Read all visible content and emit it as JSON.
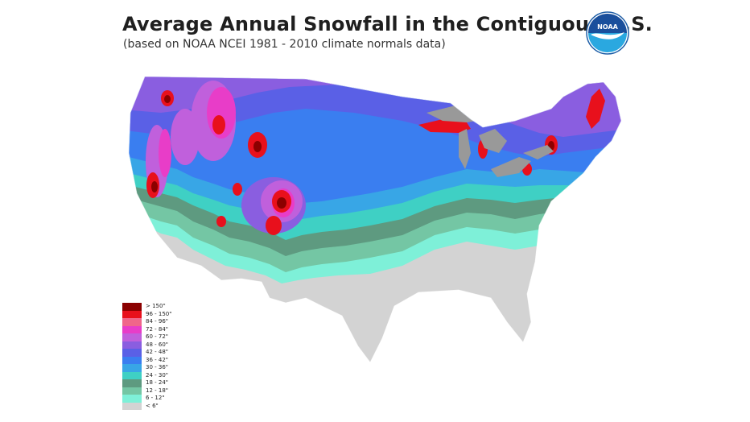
{
  "title": "Average Annual Snowfall in the Contiguous U.S.",
  "subtitle": "(based on NOAA NCEI 1981 - 2010 climate normals data)",
  "logo_text": "NOAA",
  "colors": {
    "gt150": "#8b0000",
    "96_150": "#e8101c",
    "84_96": "#f0668a",
    "72_84": "#e83dc8",
    "60_72": "#c060dc",
    "48_60": "#8a5ee0",
    "42_48": "#5a60e6",
    "36_42": "#3a7ef0",
    "30_36": "#38a6e6",
    "24_30": "#3fd0c4",
    "18_24": "#5e9a80",
    "12_18": "#74c6a4",
    "6_12": "#7ef0d8",
    "lt6": "#d3d3d3",
    "lakes": "#999999"
  },
  "legend": [
    {
      "label": "> 150\"",
      "color": "#8b0000"
    },
    {
      "label": "96 - 150\"",
      "color": "#e8101c"
    },
    {
      "label": "84 - 96\"",
      "color": "#f0668a"
    },
    {
      "label": "72 - 84\"",
      "color": "#e83dc8"
    },
    {
      "label": "60 - 72\"",
      "color": "#c060dc"
    },
    {
      "label": "48 - 60\"",
      "color": "#8a5ee0"
    },
    {
      "label": "42 - 48\"",
      "color": "#5a60e6"
    },
    {
      "label": "36 - 42\"",
      "color": "#3a7ef0"
    },
    {
      "label": "30 - 36\"",
      "color": "#38a6e6"
    },
    {
      "label": "24 - 30\"",
      "color": "#3fd0c4"
    },
    {
      "label": "18 - 24\"",
      "color": "#5e9a80"
    },
    {
      "label": "12 - 18\"",
      "color": "#74c6a4"
    },
    {
      "label": "6 - 12\"",
      "color": "#7ef0d8"
    },
    {
      "label": "< 6\"",
      "color": "#d3d3d3"
    }
  ]
}
